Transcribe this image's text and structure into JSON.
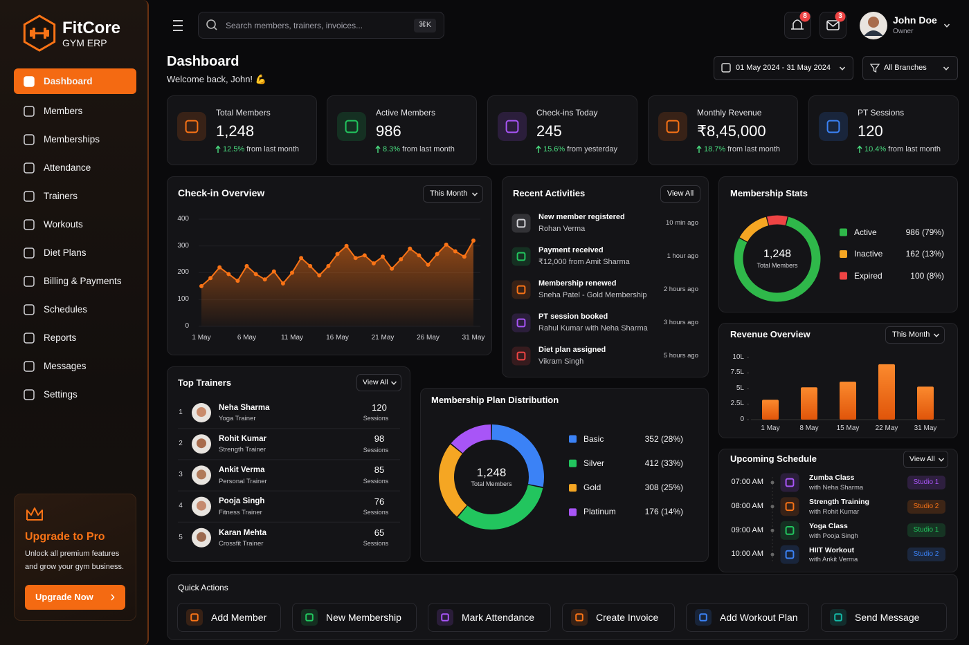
{
  "sidebar": {
    "brand": "FitCore",
    "subtitle": "GYM ERP",
    "nav": [
      "Dashboard",
      "Members",
      "Memberships",
      "Attendance",
      "Trainers",
      "Workouts",
      "Diet Plans",
      "Billing & Payments",
      "Schedules",
      "Reports",
      "Messages",
      "Settings"
    ],
    "upgrade": {
      "title": "Upgrade to Pro",
      "text": "Unlock all premium features and grow your gym business.",
      "button": "Upgrade Now"
    }
  },
  "topbar": {
    "search_placeholder": "Search members, trainers, invoices...",
    "shortcut": "⌘K",
    "notification_count": 8,
    "message_count": 3,
    "user_name": "John Doe",
    "user_role": "Owner"
  },
  "header": {
    "title": "Dashboard",
    "welcome": "Welcome back, John! 💪",
    "date_range": "01 May 2024 - 31 May 2024",
    "branch_filter": "All Branches"
  },
  "kpis": [
    {
      "label": "Total Members",
      "value": "1,248",
      "change": "12.5%",
      "note": "from last month",
      "color": "#f97316"
    },
    {
      "label": "Active Members",
      "value": "986",
      "change": "8.3%",
      "note": "from last month",
      "color": "#22c55e"
    },
    {
      "label": "Check-ins Today",
      "value": "245",
      "change": "15.6%",
      "note": "from yesterday",
      "color": "#a855f7"
    },
    {
      "label": "Monthly Revenue",
      "value": "₹8,45,000",
      "change": "18.7%",
      "note": "from last month",
      "color": "#f97316"
    },
    {
      "label": "PT Sessions",
      "value": "120",
      "change": "10.4%",
      "note": "from last month",
      "color": "#3b82f6"
    }
  ],
  "checkin_chart": {
    "type": "area",
    "title": "Check-in Overview",
    "filter": "This Month",
    "color": "#f97316",
    "categories": [
      "1 May",
      null,
      null,
      null,
      null,
      "6 May",
      null,
      null,
      null,
      null,
      "11 May",
      null,
      null,
      null,
      null,
      "16 May",
      null,
      null,
      null,
      null,
      "21 May",
      null,
      null,
      null,
      null,
      "26 May",
      null,
      null,
      null,
      null,
      "31 May"
    ],
    "values": [
      150,
      180,
      220,
      195,
      170,
      225,
      195,
      175,
      205,
      160,
      200,
      255,
      225,
      190,
      225,
      270,
      300,
      255,
      265,
      235,
      260,
      215,
      250,
      290,
      265,
      230,
      270,
      305,
      280,
      260,
      320
    ],
    "ylim": [
      0,
      400
    ],
    "yticks": [
      0,
      100,
      200,
      300,
      400
    ],
    "grid": true
  },
  "recent_activities": {
    "title": "Recent Activities",
    "action": "View All",
    "items": [
      {
        "title": "New member registered",
        "detail": "Rohan Verma",
        "time": "10 min ago",
        "color": "#d4d4d8"
      },
      {
        "title": "Payment received",
        "detail": "₹12,000 from Amit Sharma",
        "time": "1 hour ago",
        "color": "#22c55e"
      },
      {
        "title": "Membership renewed",
        "detail": "Sneha Patel - Gold Membership",
        "time": "2 hours ago",
        "color": "#f97316"
      },
      {
        "title": "PT session booked",
        "detail": "Rahul Kumar with Neha Sharma",
        "time": "3 hours ago",
        "color": "#a855f7"
      },
      {
        "title": "Diet plan assigned",
        "detail": "Vikram Singh",
        "time": "5 hours ago",
        "color": "#ef4444"
      }
    ]
  },
  "membership_stats": {
    "type": "donut",
    "title": "Membership Stats",
    "center_value": "1,248",
    "center_label": "Total Members",
    "categories": [
      "Active",
      "Inactive",
      "Expired"
    ],
    "values": [
      986,
      162,
      100
    ],
    "value_labels": [
      "986 (79%)",
      "162 (13%)",
      "100 (8%)"
    ],
    "colors": [
      "#2fb84a",
      "#f5a623",
      "#ef4444"
    ]
  },
  "revenue_chart": {
    "type": "bar",
    "title": "Revenue Overview",
    "filter": "This Month",
    "color": "#f97316",
    "categories": [
      "1 May",
      "8 May",
      "15 May",
      "22 May",
      "31 May"
    ],
    "values": [
      3.2,
      5.2,
      6.1,
      8.9,
      5.3
    ],
    "ylim": [
      0,
      10
    ],
    "yticks": [
      0,
      {
        "value": 2.5,
        "label": "2.5L"
      },
      {
        "value": 5,
        "label": "5L"
      },
      {
        "value": 7.5,
        "label": "7.5L"
      },
      {
        "value": 10,
        "label": "10L"
      }
    ]
  },
  "top_trainers": {
    "title": "Top Trainers",
    "action": "View All",
    "unit_label": "Sessions",
    "rows": [
      {
        "rank": 1,
        "name": "Neha Sharma",
        "role": "Yoga Trainer",
        "sessions": 120
      },
      {
        "rank": 2,
        "name": "Rohit Kumar",
        "role": "Strength Trainer",
        "sessions": 98
      },
      {
        "rank": 3,
        "name": "Ankit Verma",
        "role": "Personal Trainer",
        "sessions": 85
      },
      {
        "rank": 4,
        "name": "Pooja Singh",
        "role": "Fitness Trainer",
        "sessions": 76
      },
      {
        "rank": 5,
        "name": "Karan Mehta",
        "role": "Crossfit Trainer",
        "sessions": 65
      }
    ]
  },
  "plan_distribution": {
    "type": "donut",
    "title": "Membership Plan Distribution",
    "center_value": "1,248",
    "center_label": "Total Members",
    "categories": [
      "Basic",
      "Silver",
      "Gold",
      "Platinum"
    ],
    "values": [
      352,
      412,
      308,
      176
    ],
    "value_labels": [
      "352 (28%)",
      "412 (33%)",
      "308 (25%)",
      "176 (14%)"
    ],
    "colors": [
      "#3b82f6",
      "#22c55e",
      "#f5a623",
      "#a855f7"
    ]
  },
  "schedule": {
    "title": "Upcoming Schedule",
    "action": "View All",
    "items": [
      {
        "time": "07:00 AM",
        "class": "Zumba Class",
        "trainer": "with Neha Sharma",
        "studio": "Studio 1",
        "color": "#a855f7"
      },
      {
        "time": "08:00 AM",
        "class": "Strength Training",
        "trainer": "with Rohit Kumar",
        "studio": "Studio 2",
        "color": "#f97316"
      },
      {
        "time": "09:00 AM",
        "class": "Yoga Class",
        "trainer": "with Pooja Singh",
        "studio": "Studio 1",
        "color": "#22c55e"
      },
      {
        "time": "10:00 AM",
        "class": "HIIT Workout",
        "trainer": "with Ankit Verma",
        "studio": "Studio 2",
        "color": "#3b82f6"
      }
    ]
  },
  "quick_actions": {
    "title": "Quick Actions",
    "items": [
      {
        "label": "Add Member",
        "color": "#f97316"
      },
      {
        "label": "New Membership",
        "color": "#22c55e"
      },
      {
        "label": "Mark Attendance",
        "color": "#a855f7"
      },
      {
        "label": "Create Invoice",
        "color": "#f97316"
      },
      {
        "label": "Add Workout Plan",
        "color": "#3b82f6"
      },
      {
        "label": "Send Message",
        "color": "#14b8a6"
      }
    ]
  }
}
